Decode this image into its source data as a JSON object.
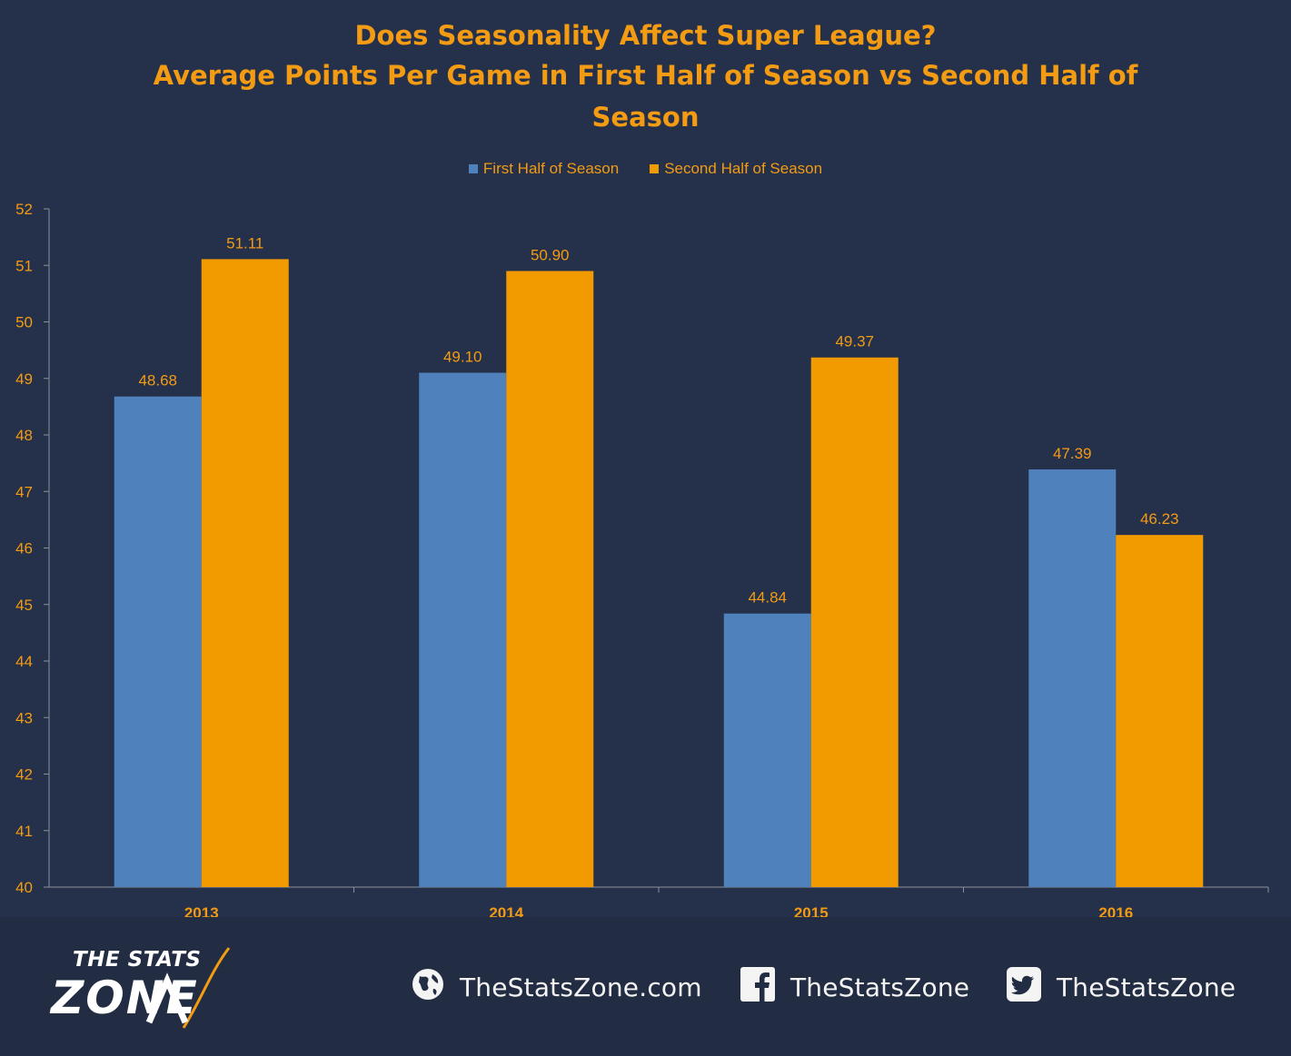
{
  "title_lines": [
    "Does Seasonality Affect Super League?",
    "Average Points Per Game in First Half of Season vs Second Half of",
    "Season"
  ],
  "colors": {
    "background": "#25304a",
    "footer_background": "#222d44",
    "accent_text": "#f29b13",
    "axis_text": "#f29b13",
    "series_1": "#4f81bd",
    "series_2": "#f29b00",
    "footer_text": "#f4f4f4"
  },
  "chart_data": {
    "type": "bar",
    "categories": [
      "2013",
      "2014",
      "2015",
      "2016"
    ],
    "series": [
      {
        "name": "First Half of Season",
        "values": [
          48.68,
          49.1,
          44.84,
          47.39
        ],
        "labels": [
          "48.68",
          "49.10",
          "44.84",
          "47.39"
        ]
      },
      {
        "name": "Second Half of Season",
        "values": [
          51.11,
          50.9,
          49.37,
          46.23
        ],
        "labels": [
          "51.11",
          "50.90",
          "49.37",
          "46.23"
        ]
      }
    ],
    "title": "Does Seasonality Affect Super League? Average Points Per Game in First Half of Season vs Second Half of Season",
    "xlabel": "",
    "ylabel": "",
    "ylim": [
      40,
      52
    ],
    "yticks": [
      "40",
      "41",
      "42",
      "43",
      "44",
      "45",
      "46",
      "47",
      "48",
      "49",
      "50",
      "51",
      "52"
    ],
    "grid": false,
    "legend_position": "top-center",
    "data_labels": true
  },
  "footer": {
    "logo": {
      "line1": "THE STATS",
      "line2": "ZONE"
    },
    "links": [
      {
        "icon": "globe-icon",
        "label": "TheStatsZone.com"
      },
      {
        "icon": "facebook-icon",
        "label": "TheStatsZone"
      },
      {
        "icon": "twitter-icon",
        "label": "TheStatsZone"
      }
    ]
  }
}
